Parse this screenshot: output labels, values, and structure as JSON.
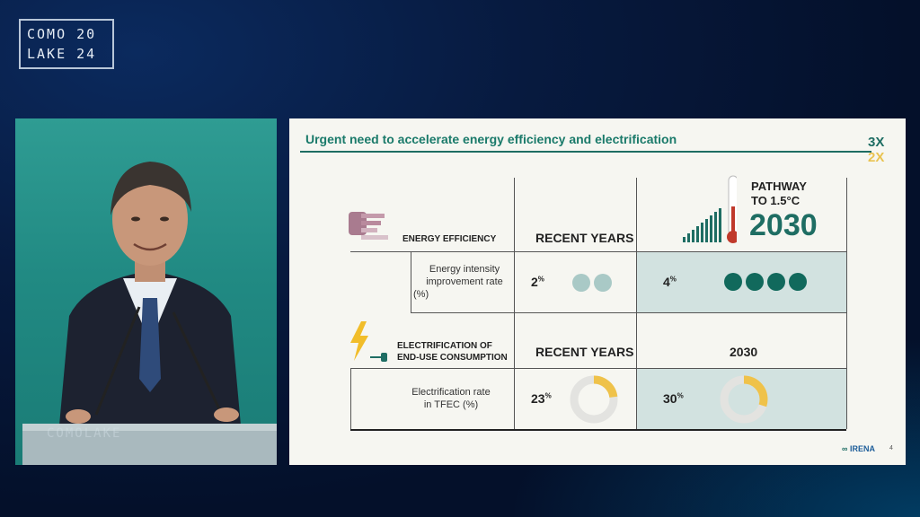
{
  "event_logo": {
    "line1": "COMO 20",
    "line2": "LAKE 24"
  },
  "podium_text": "COMOLAKE",
  "slide": {
    "title": "Urgent need to accelerate energy efficiency and electrification",
    "brand_top": "3X",
    "brand_bottom": "2X",
    "pathway": {
      "line1": "PATHWAY",
      "line2": "TO 1.5°C",
      "year": "2030"
    },
    "energy_efficiency": {
      "label": "ENERGY EFFICIENCY",
      "col_recent": "RECENT YEARS",
      "metric": [
        "Energy intensity",
        "improvement rate",
        "(%)"
      ],
      "recent_value": "2",
      "target_value": "4",
      "unit": "%",
      "recent_dots": 2,
      "target_dots": 4
    },
    "electrification": {
      "label_line1": "ELECTRIFICATION OF",
      "label_line2": "END-USE CONSUMPTION",
      "col_recent": "RECENT YEARS",
      "col_target": "2030",
      "metric": [
        "Electrification rate",
        "in TFEC (%)"
      ],
      "recent_value": "23",
      "target_value": "30",
      "unit": "%",
      "recent_fraction": 0.23,
      "target_fraction": 0.3
    },
    "footer_org": "IRENA",
    "page_number": "4"
  },
  "colors": {
    "accent_teal": "#1e6d63",
    "dot_light": "#a9c9c6",
    "dot_dark": "#11695c",
    "donut_track": "#e3e3e0",
    "donut_fill": "#efc24a",
    "bolt_yellow": "#f1bd2a",
    "thermo_red": "#c0392b"
  },
  "icons": [
    "energy-efficiency-icon",
    "lightning-plug-icon",
    "thermometer-bars-icon",
    "irena-logo-icon"
  ]
}
